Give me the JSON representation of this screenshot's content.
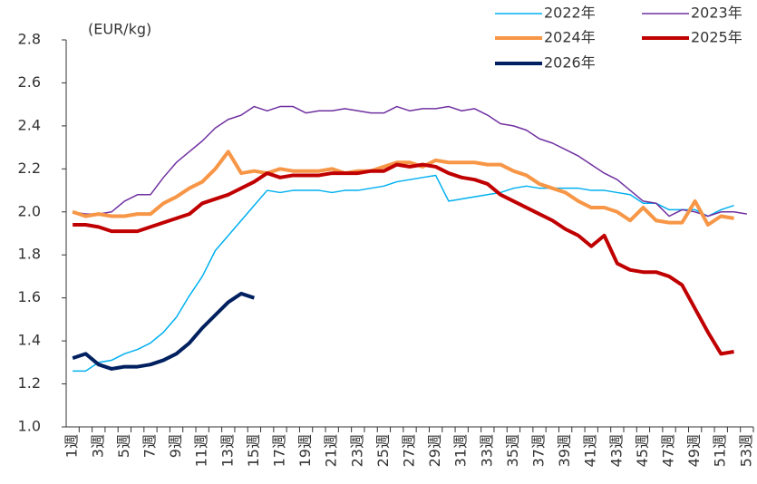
{
  "chart_data": {
    "type": "line",
    "y_label": "(EUR/kg)",
    "categories": [
      "1週",
      null,
      "3週",
      null,
      "5週",
      null,
      "7週",
      null,
      "9週",
      null,
      "11週",
      null,
      "13週",
      null,
      "15週",
      null,
      "17週",
      null,
      "19週",
      null,
      "21週",
      null,
      "23週",
      null,
      "25週",
      null,
      "27週",
      null,
      "29週",
      null,
      "31週",
      null,
      "33週",
      null,
      "35週",
      null,
      "37週",
      null,
      "39週",
      null,
      "41週",
      null,
      "43週",
      null,
      "45週",
      null,
      "47週",
      null,
      "49週",
      null,
      "51週",
      null,
      "53週"
    ],
    "ylim": [
      1.0,
      2.8
    ],
    "yticks": [
      {
        "value": 1.0,
        "label": "1.0"
      },
      1.2,
      1.4,
      1.6,
      1.8,
      {
        "value": 2.0,
        "label": "2.0"
      },
      2.2,
      2.4,
      2.6,
      2.8
    ],
    "grid": false,
    "series": [
      {
        "name": "2022年",
        "color": "#00b0f0",
        "width": 1.5,
        "values": [
          1.26,
          1.26,
          1.3,
          1.31,
          1.34,
          1.36,
          1.39,
          1.44,
          1.51,
          1.61,
          1.7,
          1.82,
          1.89,
          1.96,
          2.03,
          2.1,
          2.09,
          2.1,
          2.1,
          2.1,
          2.09,
          2.1,
          2.1,
          2.11,
          2.12,
          2.14,
          2.15,
          2.16,
          2.17,
          2.05,
          2.06,
          2.07,
          2.08,
          2.09,
          2.11,
          2.12,
          2.11,
          2.11,
          2.11,
          2.11,
          2.1,
          2.1,
          2.09,
          2.08,
          2.04,
          2.04,
          2.01,
          2.01,
          2.01,
          1.98,
          2.01,
          2.03,
          null
        ]
      },
      {
        "name": "2023年",
        "color": "#7030a0",
        "width": 1.5,
        "values": [
          2.0,
          1.99,
          1.99,
          2.0,
          2.05,
          2.08,
          2.08,
          2.16,
          2.23,
          2.28,
          2.33,
          2.39,
          2.43,
          2.45,
          2.49,
          2.47,
          2.49,
          2.49,
          2.46,
          2.47,
          2.47,
          2.48,
          2.47,
          2.46,
          2.46,
          2.49,
          2.47,
          2.48,
          2.48,
          2.49,
          2.47,
          2.48,
          2.45,
          2.41,
          2.4,
          2.38,
          2.34,
          2.32,
          2.29,
          2.26,
          2.22,
          2.18,
          2.15,
          2.1,
          2.05,
          2.04,
          1.98,
          2.01,
          2.0,
          1.98,
          2.0,
          2.0,
          1.99
        ]
      },
      {
        "name": "2024年",
        "color": "#f79646",
        "width": 4,
        "values": [
          2.0,
          1.98,
          1.99,
          1.98,
          1.98,
          1.99,
          1.99,
          2.04,
          2.07,
          2.11,
          2.14,
          2.2,
          2.28,
          2.18,
          2.19,
          2.18,
          2.2,
          2.19,
          2.19,
          2.19,
          2.2,
          2.18,
          2.19,
          2.19,
          2.21,
          2.23,
          2.23,
          2.21,
          2.24,
          2.23,
          2.23,
          2.23,
          2.22,
          2.22,
          2.19,
          2.17,
          2.13,
          2.11,
          2.09,
          2.05,
          2.02,
          2.02,
          2.0,
          1.96,
          2.02,
          1.96,
          1.95,
          1.95,
          2.05,
          1.94,
          1.98,
          1.97,
          null
        ]
      },
      {
        "name": "2025年",
        "color": "#c00000",
        "width": 4,
        "values": [
          1.94,
          1.94,
          1.93,
          1.91,
          1.91,
          1.91,
          1.93,
          1.95,
          1.97,
          1.99,
          2.04,
          2.06,
          2.08,
          2.11,
          2.14,
          2.18,
          2.16,
          2.17,
          2.17,
          2.17,
          2.18,
          2.18,
          2.18,
          2.19,
          2.19,
          2.22,
          2.21,
          2.22,
          2.21,
          2.18,
          2.16,
          2.15,
          2.13,
          2.08,
          2.05,
          2.02,
          1.99,
          1.96,
          1.92,
          1.89,
          1.84,
          1.89,
          1.76,
          1.73,
          1.72,
          1.72,
          1.7,
          1.66,
          1.55,
          1.44,
          1.34,
          1.35,
          null
        ]
      },
      {
        "name": "2026年",
        "color": "#002060",
        "width": 4,
        "values": [
          1.32,
          1.34,
          1.29,
          1.27,
          1.28,
          1.28,
          1.29,
          1.31,
          1.34,
          1.39,
          1.46,
          1.52,
          1.58,
          1.62,
          1.6,
          null,
          null,
          null,
          null,
          null,
          null,
          null,
          null,
          null,
          null,
          null,
          null,
          null,
          null,
          null,
          null,
          null,
          null,
          null,
          null,
          null,
          null,
          null,
          null,
          null,
          null,
          null,
          null,
          null,
          null,
          null,
          null,
          null,
          null,
          null,
          null,
          null,
          null
        ]
      }
    ]
  }
}
